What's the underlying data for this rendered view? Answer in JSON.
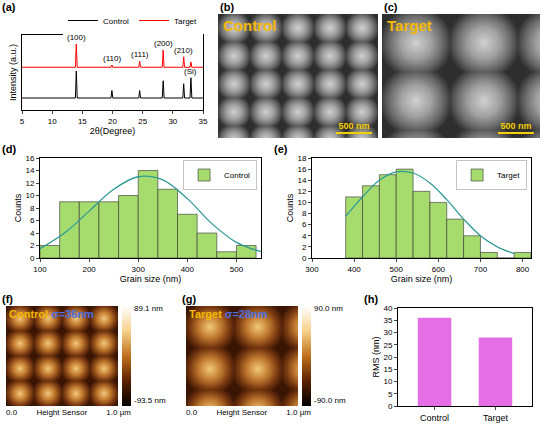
{
  "chart_data": [
    {
      "panel": "(a)",
      "type": "line",
      "x_label": "2θ(Degree)",
      "y_label": "Intensity (a.u.)",
      "series": [
        {
          "name": "Control",
          "color": "#000000",
          "x": [
            5,
            13.85,
            14.0,
            14.15,
            19.75,
            19.9,
            20.05,
            24.35,
            24.5,
            24.65,
            28.25,
            28.4,
            28.55,
            31.65,
            31.8,
            31.95,
            32.85,
            33.0,
            33.15,
            35
          ],
          "values": [
            16,
            16,
            52,
            16,
            16,
            26,
            16,
            16,
            26,
            16,
            16,
            39,
            16,
            16,
            35,
            16,
            16,
            43,
            16,
            16
          ]
        },
        {
          "name": "Target",
          "color": "#ff0000",
          "x": [
            5,
            13.85,
            14.0,
            14.15,
            19.75,
            19.9,
            20.05,
            24.35,
            24.5,
            24.65,
            28.25,
            28.4,
            28.55,
            31.65,
            31.8,
            31.95,
            32.85,
            33.0,
            33.15,
            35
          ],
          "values": [
            57,
            57,
            88,
            57,
            57,
            60,
            57,
            57,
            65,
            57,
            57,
            80,
            57,
            57,
            71,
            57,
            57,
            64,
            57,
            57
          ]
        }
      ],
      "annotations": [
        {
          "text": "(100)",
          "x": 14.0,
          "y": 88
        },
        {
          "text": "(110)",
          "x": 19.9,
          "y": 60
        },
        {
          "text": "(111)",
          "x": 24.5,
          "y": 65
        },
        {
          "text": "(200)",
          "x": 28.4,
          "y": 80
        },
        {
          "text": "(210)",
          "x": 31.8,
          "y": 71
        },
        {
          "text": "(Si)",
          "x": 33.0,
          "y": 43
        }
      ],
      "xlim": [
        5,
        35
      ],
      "xticks": [
        5,
        10,
        15,
        20,
        25,
        30,
        35
      ],
      "ylim": [
        0,
        100
      ],
      "tick_labels": "x",
      "legend": "top"
    },
    {
      "panel": "(d)",
      "type": "histogram",
      "name": "Control",
      "color": "#a6dc6e",
      "bins": [
        100,
        140,
        180,
        220,
        260,
        300,
        340,
        380,
        420,
        460,
        500,
        540
      ],
      "counts": [
        2,
        9,
        9,
        9,
        10,
        14,
        11,
        7,
        4,
        1,
        2
      ],
      "fit": {
        "color": "#2f9a96",
        "x": [
          100,
          150,
          200,
          250,
          300,
          350,
          400,
          450,
          500,
          550
        ],
        "values": [
          1.5,
          4,
          7.5,
          11,
          13,
          12.5,
          9.5,
          5.5,
          2.5,
          1
        ]
      },
      "x_label": "Grain size (nm)",
      "y_label": "Counts",
      "xlim": [
        100,
        550
      ],
      "xticks": [
        100,
        200,
        300,
        400,
        500
      ],
      "ylim": [
        0,
        16
      ],
      "yticks": [
        0,
        2,
        4,
        6,
        8,
        10,
        12,
        14,
        16
      ],
      "legend": "top right"
    },
    {
      "panel": "(e)",
      "type": "histogram",
      "name": "Target",
      "color": "#a6dc6e",
      "bins": [
        380,
        420,
        460,
        500,
        540,
        580,
        620,
        660,
        700,
        740,
        780,
        820
      ],
      "counts": [
        11,
        13,
        15,
        16,
        12,
        10,
        7,
        4,
        1,
        0,
        1
      ],
      "fit": {
        "color": "#2f9a96",
        "x": [
          380,
          420,
          460,
          500,
          540,
          580,
          620,
          660,
          700,
          740,
          780
        ],
        "values": [
          7.5,
          11,
          14,
          15.5,
          15.3,
          13.5,
          10.5,
          7,
          4,
          2,
          0.8
        ]
      },
      "x_label": "Grain size (nm)",
      "y_label": "Counts",
      "xlim": [
        300,
        820
      ],
      "xticks": [
        300,
        400,
        500,
        600,
        700,
        800
      ],
      "ylim": [
        0,
        18
      ],
      "yticks": [
        0,
        2,
        4,
        6,
        8,
        10,
        12,
        14,
        16,
        18
      ],
      "legend": "top right"
    },
    {
      "panel": "(h)",
      "type": "bar",
      "categories": [
        "Control",
        "Target"
      ],
      "values": [
        36,
        28
      ],
      "color": "#e36ee6",
      "y_label": "RMS (nm)",
      "ylim": [
        0,
        40
      ],
      "yticks": [
        0,
        5,
        10,
        15,
        20,
        25,
        30,
        35,
        40
      ]
    }
  ],
  "images": [
    {
      "panel": "(b)",
      "label": "Control",
      "scale_bar": "500 nm"
    },
    {
      "panel": "(c)",
      "label": "Target",
      "scale_bar": "500 nm"
    },
    {
      "panel": "(f)",
      "label": "Control",
      "sigma": "σ=36nm",
      "colorbar_labels": [
        "89.1 nm",
        "-93.5 nm"
      ],
      "axis_labels": [
        "0.0",
        "Height Sensor",
        "1.0 µm"
      ]
    },
    {
      "panel": "(g)",
      "label": "Target",
      "sigma": "σ=28nm",
      "colorbar_labels": [
        "90.0 nm",
        "-90.0 nm"
      ],
      "axis_labels": [
        "0.0",
        "Height Sensor",
        "1.0 µm"
      ]
    }
  ]
}
